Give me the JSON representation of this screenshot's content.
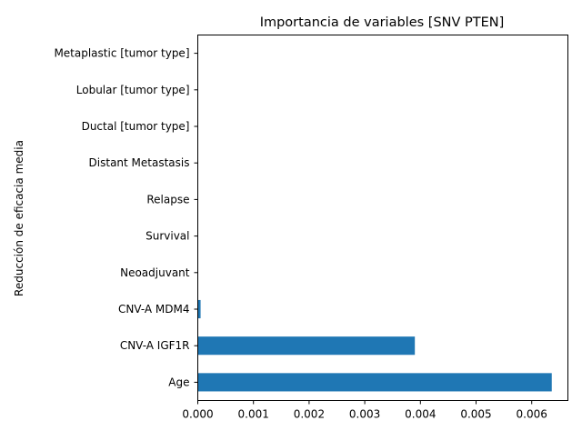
{
  "chart_data": {
    "type": "bar",
    "orientation": "horizontal",
    "title": "Importancia de variables [SNV PTEN]",
    "xlabel": "",
    "ylabel": "Reducción de eficacia media",
    "categories": [
      "Age",
      "CNV-A IGF1R",
      "CNV-A MDM4",
      "Neoadjuvant",
      "Survival",
      "Relapse",
      "Distant Metastasis",
      "Ductal [tumor type]",
      "Lobular [tumor type]",
      "Metaplastic [tumor type]"
    ],
    "values": [
      0.00636,
      0.0039,
      5e-05,
      0,
      0,
      0,
      0,
      0,
      0,
      0
    ],
    "xlim": [
      0,
      0.00665
    ],
    "xticks": [
      0,
      0.001,
      0.002,
      0.003,
      0.004,
      0.005,
      0.006
    ],
    "xtick_labels": [
      "0.000",
      "0.001",
      "0.002",
      "0.003",
      "0.004",
      "0.005",
      "0.006"
    ],
    "bar_color": "#1f77b4",
    "grid": false,
    "legend": "none"
  }
}
